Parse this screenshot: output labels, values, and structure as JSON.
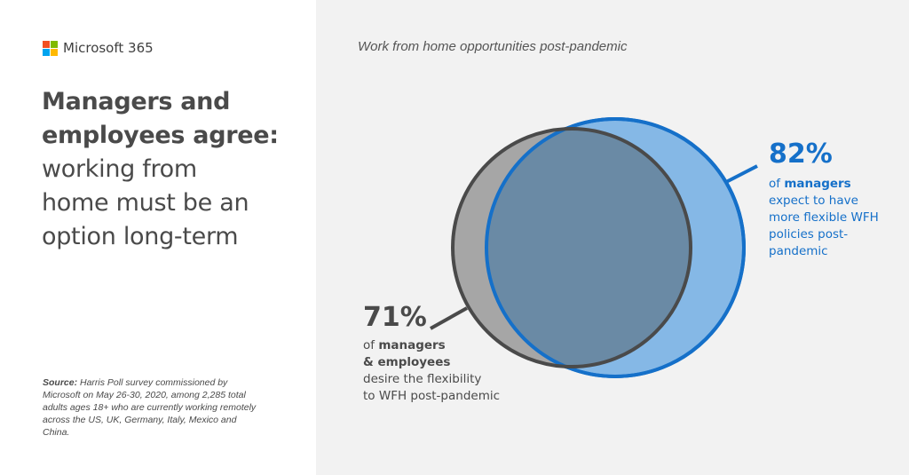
{
  "brand": {
    "name": "Microsoft 365",
    "logo_colors": [
      "#f25022",
      "#7fba00",
      "#00a4ef",
      "#ffb900"
    ]
  },
  "headline": {
    "bold_lines": [
      "Managers and",
      "employees agree:"
    ],
    "light_lines": [
      "working from",
      "home must be an",
      "option long-term"
    ]
  },
  "source": {
    "label": "Source:",
    "text": " Harris Poll survey commissioned by Microsoft on May 26-30, 2020, among 2,285 total adults ages 18+ who are currently working remotely across the US, UK, Germany, Italy, Mexico and China."
  },
  "viz": {
    "title": "Work from home opportunities post-pandemic",
    "managers": {
      "percent": "82%",
      "value": 82,
      "pre": "of ",
      "bold": "managers",
      "rest": " expect to have more flexible WFH policies post-pandemic",
      "fill": "#85b8e6",
      "stroke": "#1570c9"
    },
    "all": {
      "percent": "71%",
      "value": 71,
      "pre": "of ",
      "bold": "managers",
      "bold2": "& employees",
      "rest1": "desire the flexibility",
      "rest2": "to WFH post-pandemic",
      "fill": "#a6a6a6",
      "stroke": "#4a4a4a",
      "overlap_fill": "#6a8aa5"
    }
  }
}
